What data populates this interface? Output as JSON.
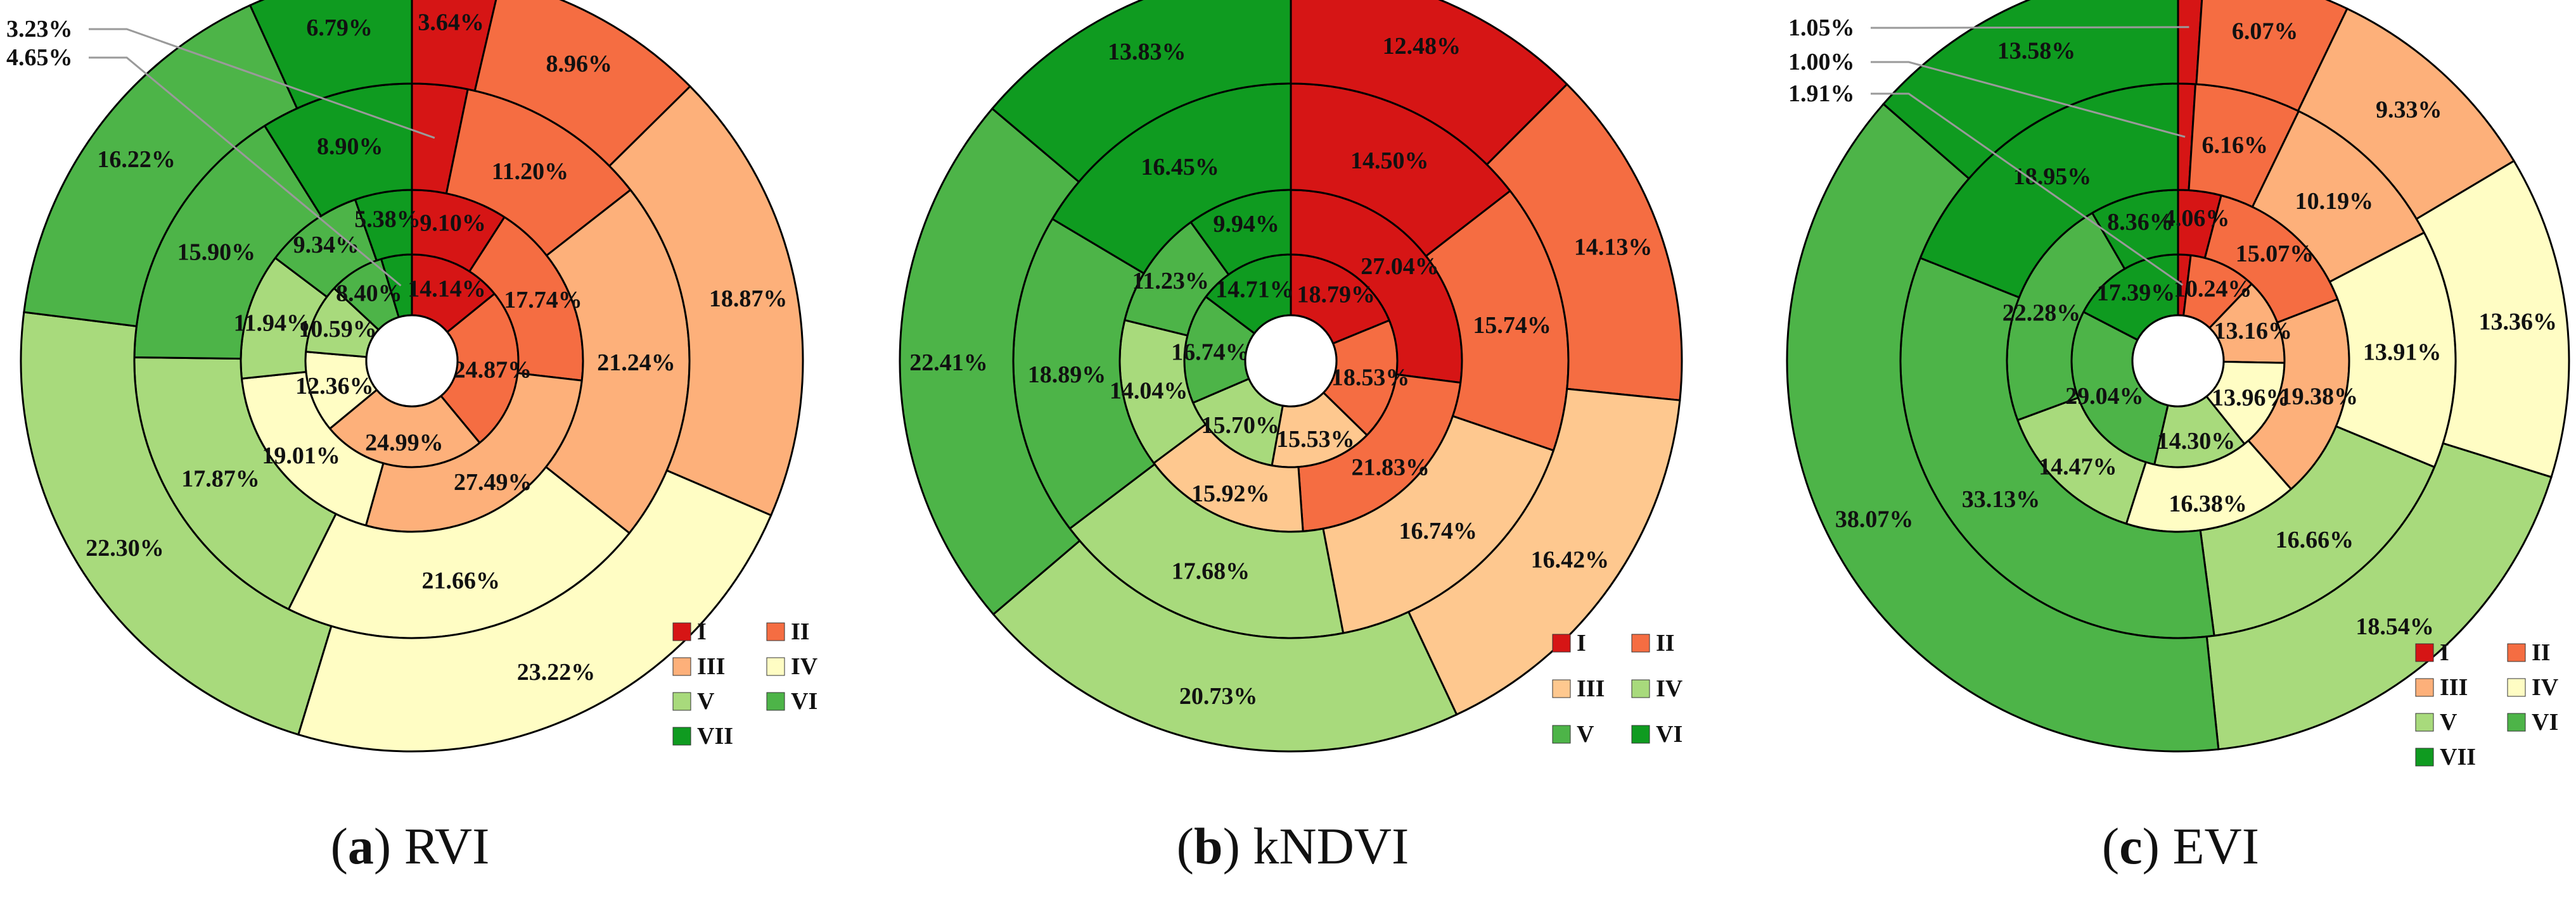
{
  "class_labels": [
    "I",
    "II",
    "III",
    "IV",
    "V",
    "VI",
    "VII"
  ],
  "class_colors": {
    "I": "#d7191c",
    "II": "#f46d43",
    "III": "#fdae61",
    "IV": "#fee08b",
    "V": "#a6d96a",
    "VI": "#4dac26",
    "VII": "#1a9641"
  },
  "panel_colors": {
    "a": [
      "#d61515",
      "#f56d42",
      "#fdb07a",
      "#fffdc4",
      "#a8da7c",
      "#4db448",
      "#0f9b20"
    ],
    "b": [
      "#d61515",
      "#f56d42",
      "#fec88f",
      "#a8da7c",
      "#4db448",
      "#0f9b20"
    ],
    "c": [
      "#d61515",
      "#f56d42",
      "#fdb07a",
      "#fffdc4",
      "#a8da7c",
      "#4db448",
      "#0f9b20"
    ]
  },
  "chart_data": [
    {
      "type": "pie",
      "subtype": "multi-ring donut",
      "panel": "a",
      "caption_letter": "a",
      "caption_text": "RVI",
      "legend": [
        "I",
        "II",
        "III",
        "IV",
        "V",
        "VI",
        "VII"
      ],
      "rings_inner_to_outer": [
        {
          "values": [
            14.14,
            24.87,
            24.99,
            12.36,
            10.59,
            8.4,
            4.65
          ]
        },
        {
          "values": [
            9.1,
            17.74,
            27.49,
            19.01,
            11.94,
            9.34,
            5.38
          ]
        },
        {
          "values": [
            3.23,
            11.2,
            21.24,
            21.66,
            17.87,
            15.9,
            8.9
          ]
        },
        {
          "values": [
            3.64,
            8.96,
            18.87,
            23.22,
            22.3,
            16.22,
            6.79
          ]
        }
      ],
      "labels_inner_to_outer": [
        [
          "14.14%",
          "24.87%",
          "24.99%",
          "12.36%",
          "10.59%",
          "8.40%",
          "4.65%"
        ],
        [
          "9.10%",
          "17.74%",
          "27.49%",
          "19.01%",
          "11.94%",
          "9.34%",
          "5.38%"
        ],
        [
          "3.23%",
          "11.20%",
          "21.24%",
          "21.66%",
          "17.87%",
          "15.90%",
          "8.90%"
        ],
        [
          "3.64%",
          "8.96%",
          "18.87%",
          "23.22%",
          "22.30%",
          "16.22%",
          "6.79%"
        ]
      ],
      "callouts": [
        {
          "text": "3.23%",
          "ring": 2,
          "slice": 0
        },
        {
          "text": "4.65%",
          "ring": 0,
          "slice": 6
        }
      ]
    },
    {
      "type": "pie",
      "subtype": "multi-ring donut",
      "panel": "b",
      "caption_letter": "b",
      "caption_text": "kNDVI",
      "legend": [
        "I",
        "II",
        "III",
        "IV",
        "V",
        "VI"
      ],
      "rings_inner_to_outer": [
        {
          "values": [
            18.79,
            18.53,
            15.53,
            15.7,
            16.74,
            14.71
          ]
        },
        {
          "values": [
            27.04,
            21.83,
            15.92,
            14.04,
            11.23,
            9.94
          ]
        },
        {
          "values": [
            14.5,
            15.74,
            16.74,
            17.68,
            18.89,
            16.45
          ]
        },
        {
          "values": [
            12.48,
            14.13,
            16.42,
            20.73,
            22.41,
            13.83
          ]
        }
      ],
      "labels_inner_to_outer": [
        [
          "18.79%",
          "18.53%",
          "15.53%",
          "15.70%",
          "16.74%",
          "14.71%"
        ],
        [
          "27.04%",
          "21.83%",
          "15.92%",
          "14.04%",
          "11.23%",
          "9.94%"
        ],
        [
          "14.50%",
          "15.74%",
          "16.74%",
          "17.68%",
          "18.89%",
          "16.45%"
        ],
        [
          "12.48%",
          "14.13%",
          "16.42%",
          "20.73%",
          "22.41%",
          "13.83%"
        ]
      ],
      "callouts": []
    },
    {
      "type": "pie",
      "subtype": "multi-ring donut",
      "panel": "c",
      "caption_letter": "c",
      "caption_text": "EVI",
      "legend": [
        "I",
        "II",
        "III",
        "IV",
        "V",
        "VI",
        "VII"
      ],
      "rings_inner_to_outer": [
        {
          "values": [
            1.91,
            10.24,
            13.16,
            13.96,
            14.3,
            29.04,
            17.39
          ]
        },
        {
          "values": [
            4.06,
            15.07,
            19.38,
            16.38,
            14.47,
            22.28,
            8.36
          ]
        },
        {
          "values": [
            1.0,
            6.16,
            10.19,
            13.91,
            16.66,
            33.13,
            18.95
          ]
        },
        {
          "values": [
            1.05,
            6.07,
            9.33,
            13.36,
            18.54,
            38.07,
            13.58
          ]
        }
      ],
      "labels_inner_to_outer": [
        [
          "1.91%",
          "10.24%",
          "13.16%",
          "13.96%",
          "14.30%",
          "29.04%",
          "17.39%"
        ],
        [
          "4.06%",
          "15.07%",
          "19.38%",
          "16.38%",
          "14.47%",
          "22.28%",
          "8.36%"
        ],
        [
          "1.00%",
          "6.16%",
          "10.19%",
          "13.91%",
          "16.66%",
          "33.13%",
          "18.95%"
        ],
        [
          "1.05%",
          "6.07%",
          "9.33%",
          "13.36%",
          "18.54%",
          "38.07%",
          "13.58%"
        ]
      ],
      "callouts": [
        {
          "text": "1.05%",
          "ring": 3,
          "slice": 0
        },
        {
          "text": "1.00%",
          "ring": 2,
          "slice": 0
        },
        {
          "text": "1.91%",
          "ring": 0,
          "slice": 0
        }
      ]
    }
  ]
}
